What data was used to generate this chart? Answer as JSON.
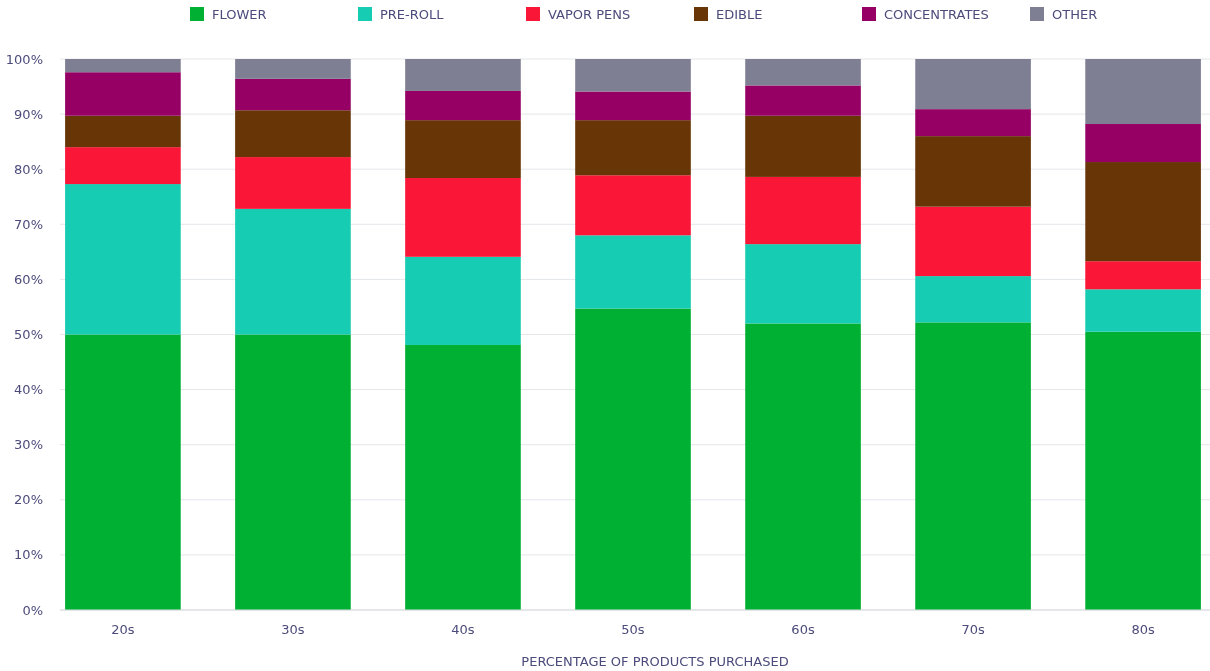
{
  "chart_data": {
    "type": "bar",
    "stacked": true,
    "xlabel": "PERCENTAGE OF PRODUCTS PURCHASED",
    "categories": [
      "20s",
      "30s",
      "40s",
      "50s",
      "60s",
      "70s",
      "80s"
    ],
    "series": [
      {
        "name": "FLOWER",
        "color": "#00b033",
        "values": [
          50,
          50,
          48.1,
          54.7,
          52,
          52.2,
          50.5
        ]
      },
      {
        "name": "PRE-ROLL",
        "color": "#16ccb2",
        "values": [
          27.3,
          22.8,
          16,
          13.3,
          14.4,
          8.4,
          7.7
        ]
      },
      {
        "name": "VAPOR PENS",
        "color": "#fa1637",
        "values": [
          6.7,
          9.4,
          14.3,
          10.9,
          12.2,
          12.6,
          5.1
        ]
      },
      {
        "name": "EDIBLE",
        "color": "#673506",
        "values": [
          5.7,
          8.5,
          10.5,
          10,
          11.1,
          12.8,
          18
        ]
      },
      {
        "name": "CONCENTRATES",
        "color": "#960064",
        "values": [
          7.9,
          5.7,
          5.3,
          5.2,
          5.5,
          4.9,
          6.9
        ]
      },
      {
        "name": "OTHER",
        "color": "#7f7f94",
        "values": [
          2.4,
          3.6,
          5.8,
          5.9,
          4.8,
          9.1,
          11.8
        ]
      }
    ],
    "ylim": [
      0,
      100
    ],
    "yticks": [
      {
        "value": 0,
        "label": "0%"
      },
      {
        "value": 10,
        "label": "10%"
      },
      {
        "value": 20,
        "label": "20%"
      },
      {
        "value": 30,
        "label": "30%"
      },
      {
        "value": 40,
        "label": "40%"
      },
      {
        "value": 50,
        "label": "50%"
      },
      {
        "value": 60,
        "label": "60%"
      },
      {
        "value": 70,
        "label": "70%"
      },
      {
        "value": 80,
        "label": "80%"
      },
      {
        "value": 90,
        "label": "90%"
      },
      {
        "value": 100,
        "label": "100%"
      }
    ],
    "grid": "y",
    "legend": "top"
  }
}
